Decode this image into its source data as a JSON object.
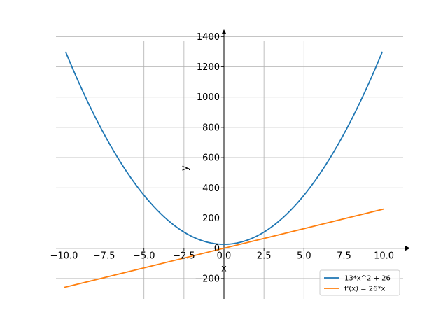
{
  "chart_data": {
    "type": "line",
    "xlabel": "x",
    "ylabel": "y",
    "xlim": [
      -10.5,
      11.2
    ],
    "ylim": [
      -335,
      1420
    ],
    "grid": true,
    "legend_position": "lower-right",
    "x_ticks": [
      -10.0,
      -7.5,
      -5.0,
      -2.5,
      0.0,
      2.5,
      5.0,
      7.5,
      10.0
    ],
    "x_tick_labels": [
      "−10.0",
      "−7.5",
      "−5.0",
      "−2.5",
      "0.0",
      "2.5",
      "5.0",
      "7.5",
      "10.0"
    ],
    "y_ticks": [
      -200,
      0,
      200,
      400,
      600,
      800,
      1000,
      1200,
      1400
    ],
    "y_tick_labels": [
      "−200",
      "0",
      "200",
      "400",
      "600",
      "800",
      "1000",
      "1200",
      "1400"
    ],
    "series": [
      {
        "name": "13*x^2 + 26",
        "color": "#1f77b4",
        "x": [
          -9.9,
          -9,
          -8,
          -7,
          -6,
          -5,
          -4,
          -3,
          -2,
          -1,
          0,
          1,
          2,
          3,
          4,
          5,
          6,
          7,
          8,
          9,
          9.9
        ],
        "y": [
          1300.13,
          1079,
          858,
          663,
          494,
          351,
          234,
          143,
          78,
          39,
          26,
          39,
          78,
          143,
          234,
          351,
          494,
          663,
          858,
          1079,
          1300.13
        ]
      },
      {
        "name": "f'(x) = 26*x",
        "color": "#ff7f0e",
        "x": [
          -10,
          10
        ],
        "y": [
          -260,
          260
        ]
      }
    ]
  }
}
